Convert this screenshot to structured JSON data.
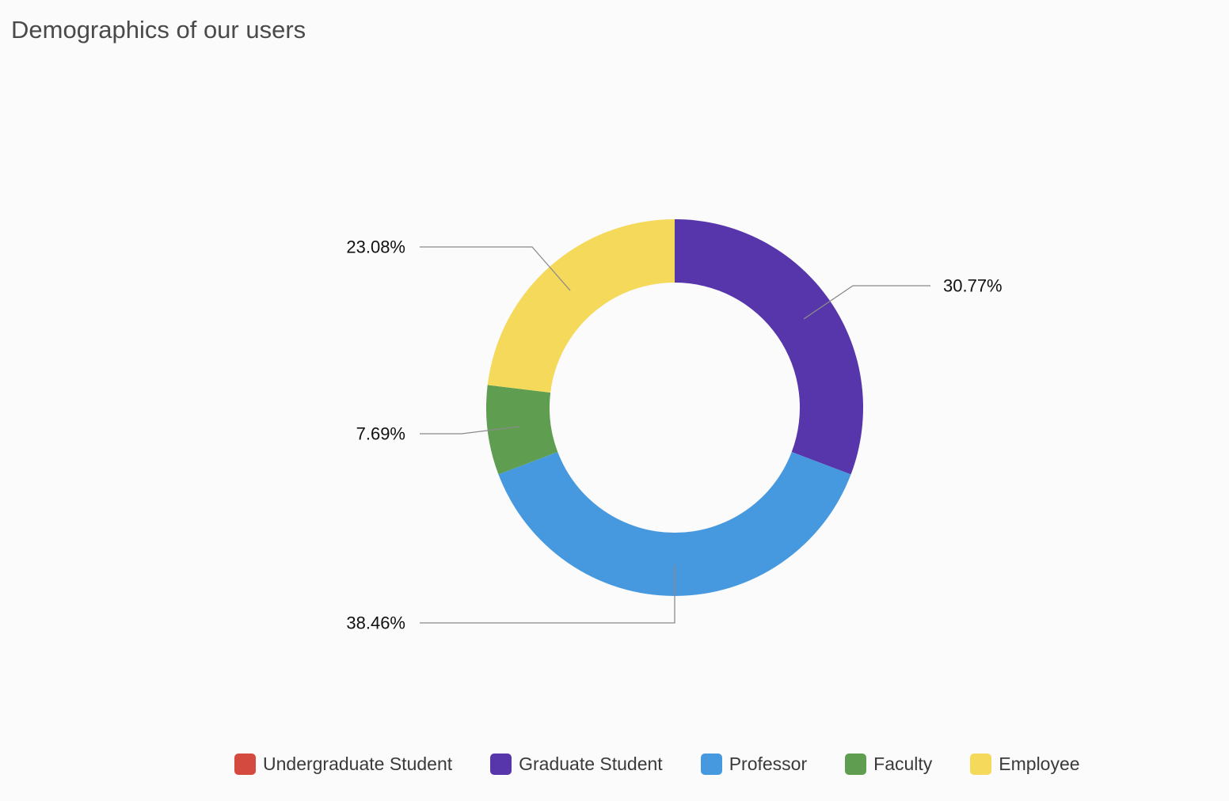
{
  "chart_data": {
    "type": "pie",
    "style": "donut",
    "title": "Demographics of our users",
    "categories": [
      "Undergraduate Student",
      "Graduate Student",
      "Professor",
      "Faculty",
      "Employee"
    ],
    "values": [
      0,
      30.77,
      38.46,
      7.69,
      23.08
    ],
    "labels": [
      "",
      "30.77%",
      "38.46%",
      "7.69%",
      "23.08%"
    ],
    "colors": [
      "#d44a3f",
      "#5735ab",
      "#4699df",
      "#5f9e50",
      "#f5d95a"
    ],
    "start_angle_deg": 0,
    "legend_position": "bottom"
  }
}
